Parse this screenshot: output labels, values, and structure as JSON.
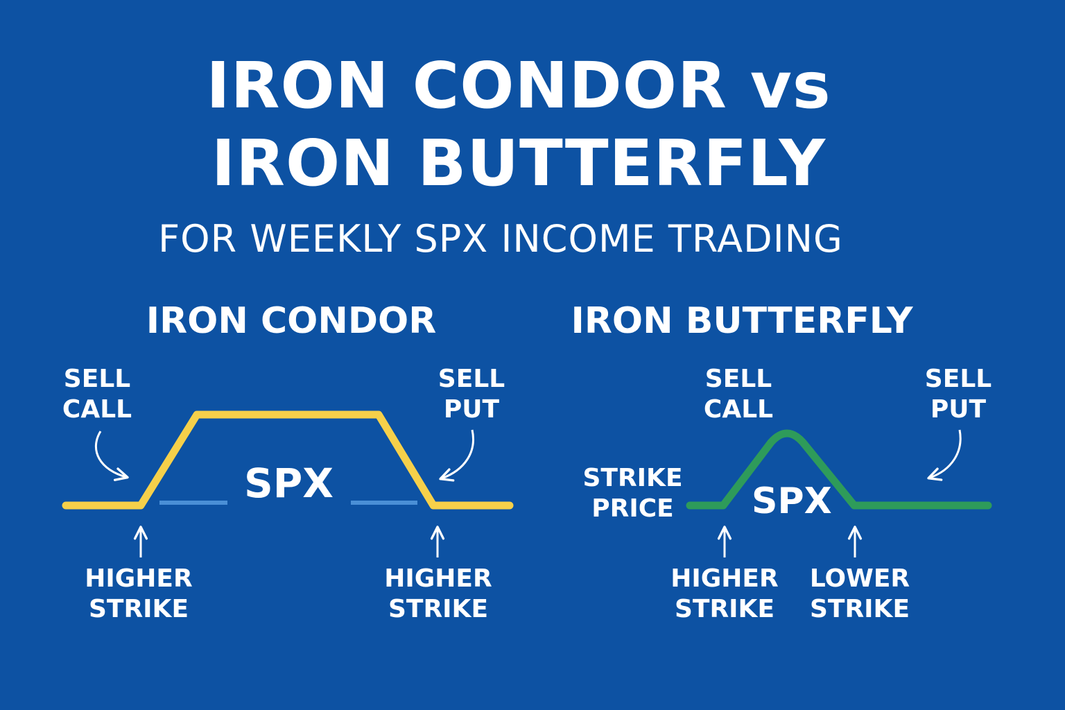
{
  "header": {
    "title_line1": "IRON CONDOR vs",
    "title_line2": "IRON BUTTERFLY",
    "subtitle": "FOR WEEKLY SPX INCOME TRADING"
  },
  "iron_condor": {
    "title": "IRON CONDOR",
    "sell_call": [
      "SELL",
      "CALL"
    ],
    "sell_put": [
      "SELL",
      "PUT"
    ],
    "center_label": "SPX",
    "left_strike": [
      "HIGHER",
      "STRIKE"
    ],
    "right_strike": [
      "HIGHER",
      "STRIKE"
    ],
    "line_color": "#f6d04a",
    "dash_color": "#4a8fd6"
  },
  "iron_butterfly": {
    "title": "IRON BUTTERFLY",
    "sell_call": [
      "SELL",
      "CALL"
    ],
    "sell_put": [
      "SELL",
      "PUT"
    ],
    "strike_price": [
      "STRIKE",
      "PRICE"
    ],
    "center_label": "SPX",
    "left_strike": [
      "HIGHER",
      "STRIKE"
    ],
    "right_strike": [
      "LOWER",
      "STRIKE"
    ],
    "line_color": "#2e9b5a"
  }
}
